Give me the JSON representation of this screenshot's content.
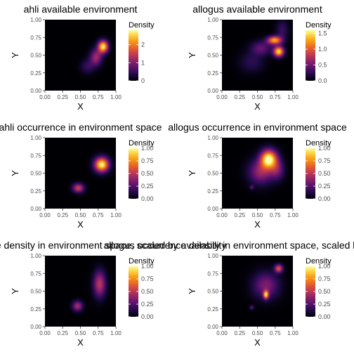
{
  "panels": [
    {
      "title": "ahli available environment",
      "legend_title": "Density",
      "legend_ticks": [
        "0",
        "1",
        "2"
      ]
    },
    {
      "title": "allogus available environment",
      "legend_title": "Density",
      "legend_ticks": [
        "0.0",
        "0.5",
        "1.0",
        "1.5"
      ]
    },
    {
      "title": "ahli occurrence in environment space",
      "legend_title": "Density",
      "legend_ticks": [
        "0.00",
        "0.25",
        "0.50",
        "0.75",
        "1.00"
      ]
    },
    {
      "title": "allogus occurrence in environment space",
      "legend_title": "Density",
      "legend_ticks": [
        "0.00",
        "0.25",
        "0.50",
        "0.75",
        "1.00"
      ]
    },
    {
      "title": "ahli occurrence density in environment space, scaled by availability",
      "legend_title": "Density",
      "legend_ticks": [
        "0.00",
        "0.25",
        "0.50",
        "0.75",
        "1.00"
      ]
    },
    {
      "title": "allogus occurrence density in environment space, scaled by availability",
      "legend_title": "Density",
      "legend_ticks": [
        "0.00",
        "0.25",
        "0.50",
        "0.75",
        "1.00"
      ]
    }
  ],
  "chart_data": [
    {
      "type": "heatmap",
      "title": "ahli available environment",
      "xlabel": "X",
      "ylabel": "Y",
      "xlim": [
        0,
        1
      ],
      "ylim": [
        0,
        1
      ],
      "x_ticks": [
        "0.00",
        "0.25",
        "0.50",
        "0.75",
        "1.00"
      ],
      "y_ticks": [
        "0.00",
        "0.25",
        "0.50",
        "0.75",
        "1.00"
      ],
      "legend_title": "Density",
      "colorbar_range": [
        0,
        2.8
      ],
      "colorbar_ticks": [
        0,
        1,
        2
      ],
      "colorbar_tick_labels": [
        "0",
        "1",
        "2"
      ],
      "colormap": "inferno",
      "blobs": [
        {
          "x": 0.82,
          "y": 0.62,
          "sx": 0.05,
          "sy": 0.06,
          "peak": 2.7
        },
        {
          "x": 0.72,
          "y": 0.47,
          "sx": 0.06,
          "sy": 0.08,
          "peak": 1.2
        },
        {
          "x": 0.6,
          "y": 0.34,
          "sx": 0.07,
          "sy": 0.07,
          "peak": 0.5
        }
      ]
    },
    {
      "type": "heatmap",
      "title": "allogus available environment",
      "xlabel": "X",
      "ylabel": "Y",
      "xlim": [
        0,
        1
      ],
      "ylim": [
        0,
        1
      ],
      "x_ticks": [
        "0.00",
        "0.25",
        "0.50",
        "0.75",
        "1.00"
      ],
      "y_ticks": [
        "0.00",
        "0.25",
        "0.50",
        "0.75",
        "1.00"
      ],
      "legend_title": "Density",
      "colorbar_range": [
        0,
        1.6
      ],
      "colorbar_ticks": [
        0,
        0.5,
        1,
        1.5
      ],
      "colorbar_tick_labels": [
        "0.0",
        "0.5",
        "1.0",
        "1.5"
      ],
      "colormap": "inferno",
      "blobs": [
        {
          "x": 0.74,
          "y": 0.71,
          "sx": 0.07,
          "sy": 0.04,
          "peak": 1.3
        },
        {
          "x": 0.8,
          "y": 0.55,
          "sx": 0.05,
          "sy": 0.05,
          "peak": 1.5
        },
        {
          "x": 0.55,
          "y": 0.6,
          "sx": 0.1,
          "sy": 0.07,
          "peak": 0.45
        },
        {
          "x": 0.42,
          "y": 0.4,
          "sx": 0.12,
          "sy": 0.1,
          "peak": 0.25
        },
        {
          "x": 0.85,
          "y": 0.85,
          "sx": 0.06,
          "sy": 0.1,
          "peak": 0.3
        }
      ]
    },
    {
      "type": "heatmap",
      "title": "ahli occurrence in environment space",
      "xlabel": "X",
      "ylabel": "Y",
      "xlim": [
        0,
        1
      ],
      "ylim": [
        0,
        1
      ],
      "x_ticks": [
        "0.00",
        "0.25",
        "0.50",
        "0.75",
        "1.00"
      ],
      "y_ticks": [
        "0.00",
        "0.25",
        "0.50",
        "0.75",
        "1.00"
      ],
      "legend_title": "Density",
      "colorbar_range": [
        0,
        1
      ],
      "colorbar_ticks": [
        0,
        0.25,
        0.5,
        0.75,
        1
      ],
      "colorbar_tick_labels": [
        "0.00",
        "0.25",
        "0.50",
        "0.75",
        "1.00"
      ],
      "colormap": "inferno",
      "blobs": [
        {
          "x": 0.8,
          "y": 0.62,
          "sx": 0.07,
          "sy": 0.07,
          "peak": 1.0
        },
        {
          "x": 0.47,
          "y": 0.29,
          "sx": 0.055,
          "sy": 0.045,
          "peak": 0.55
        }
      ]
    },
    {
      "type": "heatmap",
      "title": "allogus occurrence in environment space",
      "xlabel": "X",
      "ylabel": "Y",
      "xlim": [
        0,
        1
      ],
      "ylim": [
        0,
        1
      ],
      "x_ticks": [
        "0.00",
        "0.25",
        "0.50",
        "0.75",
        "1.00"
      ],
      "y_ticks": [
        "0.00",
        "0.25",
        "0.50",
        "0.75",
        "1.00"
      ],
      "legend_title": "Density",
      "colorbar_range": [
        0,
        1
      ],
      "colorbar_ticks": [
        0,
        0.25,
        0.5,
        0.75,
        1
      ],
      "colorbar_tick_labels": [
        "0.00",
        "0.25",
        "0.50",
        "0.75",
        "1.00"
      ],
      "colormap": "inferno",
      "blobs": [
        {
          "x": 0.66,
          "y": 0.7,
          "sx": 0.08,
          "sy": 0.09,
          "peak": 1.0
        },
        {
          "x": 0.55,
          "y": 0.52,
          "sx": 0.12,
          "sy": 0.12,
          "peak": 0.42
        },
        {
          "x": 0.78,
          "y": 0.55,
          "sx": 0.07,
          "sy": 0.1,
          "peak": 0.3
        },
        {
          "x": 0.42,
          "y": 0.3,
          "sx": 0.02,
          "sy": 0.02,
          "peak": 0.25
        }
      ]
    },
    {
      "type": "heatmap",
      "title": "ahli occurrence density in environment space, scaled by availability",
      "xlabel": "X",
      "ylabel": "Y",
      "xlim": [
        0,
        1
      ],
      "ylim": [
        0,
        1
      ],
      "x_ticks": [
        "0.00",
        "0.25",
        "0.50",
        "0.75",
        "1.00"
      ],
      "y_ticks": [
        "0.00",
        "0.25",
        "0.50",
        "0.75",
        "1.00"
      ],
      "legend_title": "Density",
      "colorbar_range": [
        0,
        1
      ],
      "colorbar_ticks": [
        0,
        0.25,
        0.5,
        0.75,
        1
      ],
      "colorbar_tick_labels": [
        "0.00",
        "0.25",
        "0.50",
        "0.75",
        "1.00"
      ],
      "colormap": "inferno",
      "blobs": [
        {
          "x": 0.77,
          "y": 0.6,
          "sx": 0.06,
          "sy": 0.13,
          "peak": 0.5
        },
        {
          "x": 0.46,
          "y": 0.29,
          "sx": 0.05,
          "sy": 0.05,
          "peak": 0.45
        }
      ]
    },
    {
      "type": "heatmap",
      "title": "allogus occurrence density in environment space, scaled by availability",
      "xlabel": "X",
      "ylabel": "Y",
      "xlim": [
        0,
        1
      ],
      "ylim": [
        0,
        1
      ],
      "x_ticks": [
        "0.00",
        "0.25",
        "0.50",
        "0.75",
        "1.00"
      ],
      "y_ticks": [
        "0.00",
        "0.25",
        "0.50",
        "0.75",
        "1.00"
      ],
      "legend_title": "Density",
      "colorbar_range": [
        0,
        1
      ],
      "colorbar_ticks": [
        0,
        0.25,
        0.5,
        0.75,
        1
      ],
      "colorbar_tick_labels": [
        "0.00",
        "0.25",
        "0.50",
        "0.75",
        "1.00"
      ],
      "colormap": "inferno",
      "blobs": [
        {
          "x": 0.62,
          "y": 0.58,
          "sx": 0.13,
          "sy": 0.13,
          "peak": 0.35
        },
        {
          "x": 0.62,
          "y": 0.45,
          "sx": 0.025,
          "sy": 0.04,
          "peak": 0.8
        },
        {
          "x": 0.8,
          "y": 0.82,
          "sx": 0.04,
          "sy": 0.04,
          "peak": 0.6
        },
        {
          "x": 0.42,
          "y": 0.27,
          "sx": 0.02,
          "sy": 0.02,
          "peak": 0.3
        }
      ]
    }
  ]
}
